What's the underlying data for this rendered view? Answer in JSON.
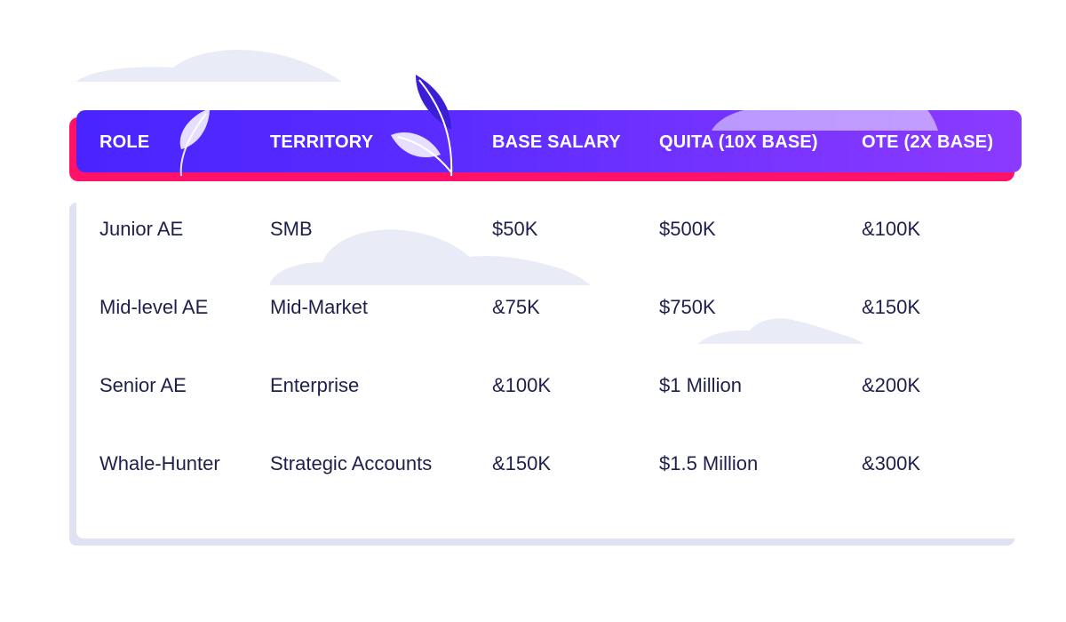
{
  "colors": {
    "header_gradient_start": "#4a24ff",
    "header_gradient_end": "#8b3bff",
    "header_shadow": "#ff1268",
    "text_dark": "#1f1f4d",
    "cloud": "#e9ecf7"
  },
  "table": {
    "headers": [
      "ROLE",
      "TERRITORY",
      "BASE SALARY",
      "QUITA (10X BASE)",
      "OTE (2X BASE)"
    ],
    "rows": [
      [
        "Junior AE",
        "SMB",
        "$50K",
        "$500K",
        "&100K"
      ],
      [
        "Mid-level AE",
        "Mid-Market",
        "&75K",
        "$750K",
        "&150K"
      ],
      [
        "Senior AE",
        "Enterprise",
        "&100K",
        "$1 Million",
        "&200K"
      ],
      [
        "Whale-Hunter",
        "Strategic Accounts",
        "&150K",
        "$1.5 Million",
        "&300K"
      ]
    ]
  },
  "icons": [
    "cloud-icon",
    "leaf-icon"
  ]
}
